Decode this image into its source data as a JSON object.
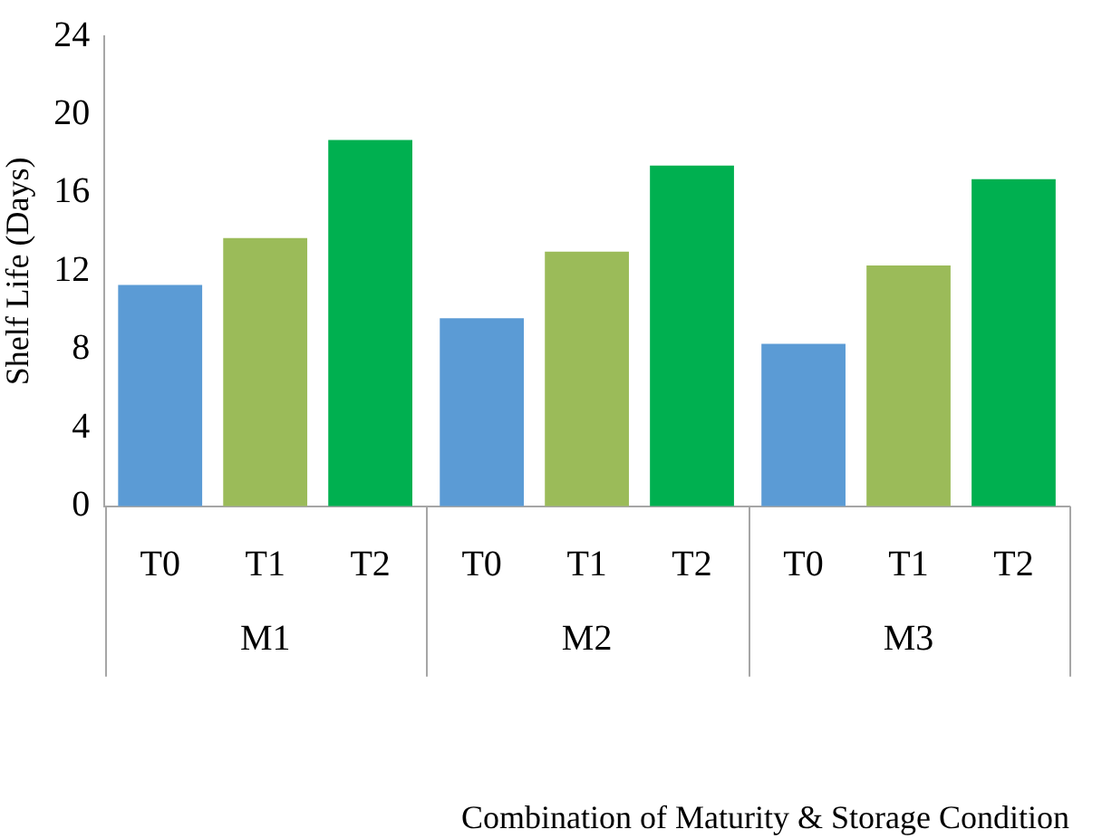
{
  "chart_data": {
    "type": "bar",
    "xlabel": "Combination of Maturity & Storage Condition",
    "ylabel": "Shelf Life (Days)",
    "categories": [
      "M1",
      "M2",
      "M3"
    ],
    "series": [
      {
        "name": "T0",
        "color": "#5b9bd5",
        "values": [
          11.3,
          9.6,
          8.3
        ]
      },
      {
        "name": "T1",
        "color": "#9bbb59",
        "values": [
          13.7,
          13.0,
          12.3
        ]
      },
      {
        "name": "T2",
        "color": "#00b050",
        "values": [
          18.7,
          17.4,
          16.7
        ]
      }
    ],
    "ylim": [
      0,
      24
    ],
    "yticks": [
      0,
      4,
      8,
      12,
      16,
      20,
      24
    ],
    "grid": false,
    "legend": false
  }
}
